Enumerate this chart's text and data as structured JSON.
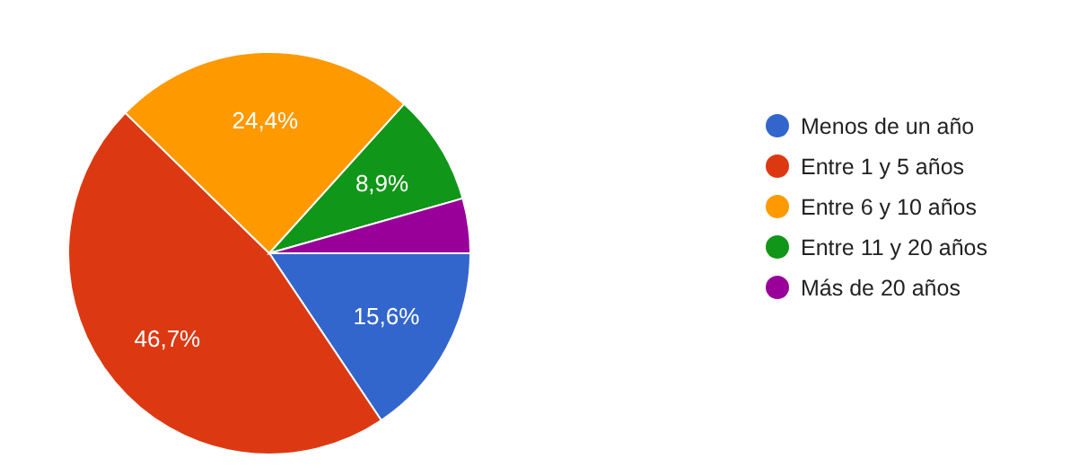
{
  "chart_data": {
    "type": "pie",
    "categories": [
      "Menos de un año",
      "Entre 1 y 5 años",
      "Entre 6 y 10 años",
      "Entre 11 y 20 años",
      "Más de 20 años"
    ],
    "values": [
      15.6,
      46.7,
      24.4,
      8.9,
      4.4
    ],
    "colors": [
      "#3366cc",
      "#dc3912",
      "#ff9900",
      "#109618",
      "#990099"
    ],
    "value_labels": [
      "15,6%",
      "46,7%",
      "24,4%",
      "8,9%",
      null
    ],
    "legend": "right"
  }
}
